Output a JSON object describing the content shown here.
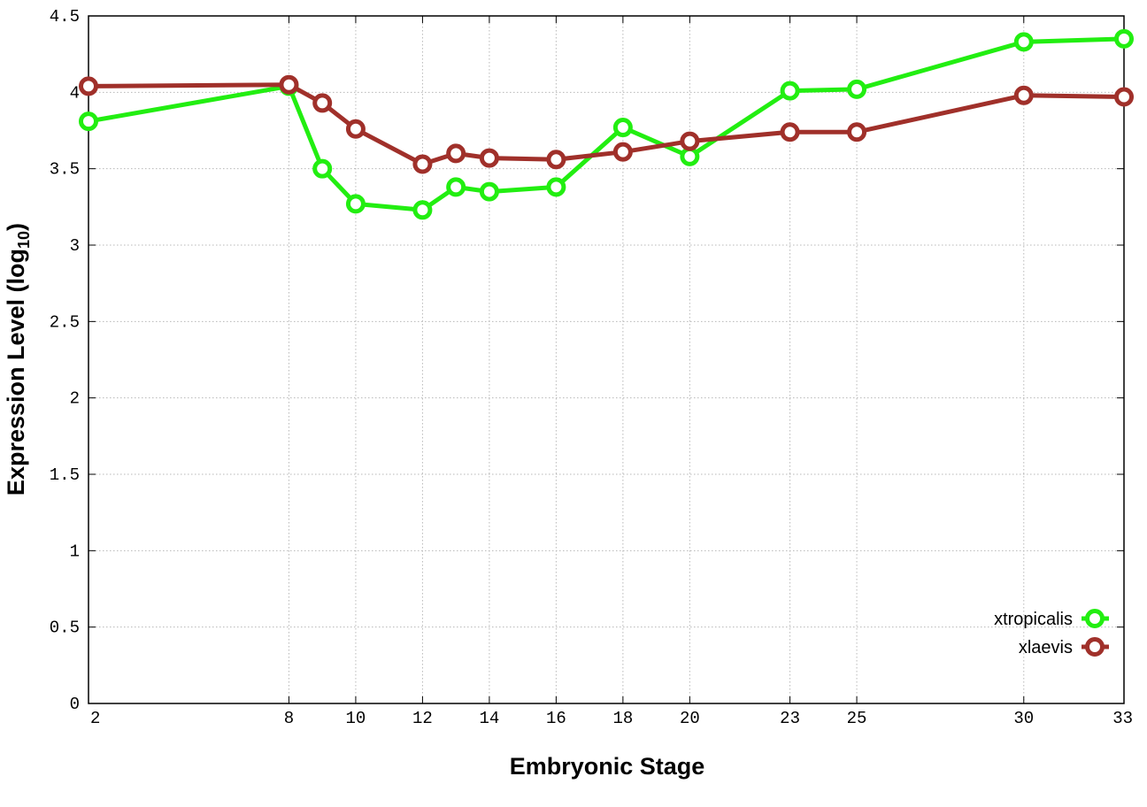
{
  "chart_data": {
    "type": "line",
    "xlabel": "Embryonic Stage",
    "ylabel_main": "Expression Level (log",
    "ylabel_sub": "10",
    "ylabel_close": ")",
    "ylim": [
      0,
      4.5
    ],
    "ytick_values": [
      0,
      0.5,
      1,
      1.5,
      2,
      2.5,
      3,
      3.5,
      4,
      4.5
    ],
    "ytick_labels": [
      "0",
      "0.5",
      "1",
      "1.5",
      "2",
      "2.5",
      "3",
      "3.5",
      "4",
      "4.5"
    ],
    "x": [
      2,
      8,
      9,
      10,
      12,
      13,
      14,
      16,
      18,
      20,
      23,
      25,
      30,
      33
    ],
    "xtick_values": [
      2,
      8,
      10,
      12,
      14,
      16,
      18,
      20,
      23,
      25,
      30,
      33
    ],
    "xtick_labels": [
      "2",
      "8",
      "10",
      "12",
      "14",
      "16",
      "18",
      "20",
      "23",
      "25",
      "30",
      "33"
    ],
    "xlim": [
      2,
      33
    ],
    "grid": true,
    "legend_position": "bottom-right",
    "series": [
      {
        "name": "xtropicalis",
        "color": "#22ee11",
        "values": [
          3.81,
          4.04,
          3.5,
          3.27,
          3.23,
          3.38,
          3.35,
          3.38,
          3.77,
          3.58,
          4.01,
          4.02,
          4.33,
          4.35
        ]
      },
      {
        "name": "xlaevis",
        "color": "#a0302a",
        "values": [
          4.04,
          4.05,
          3.93,
          3.76,
          3.53,
          3.6,
          3.57,
          3.56,
          3.61,
          3.68,
          3.74,
          3.74,
          3.98,
          3.97
        ]
      }
    ]
  }
}
